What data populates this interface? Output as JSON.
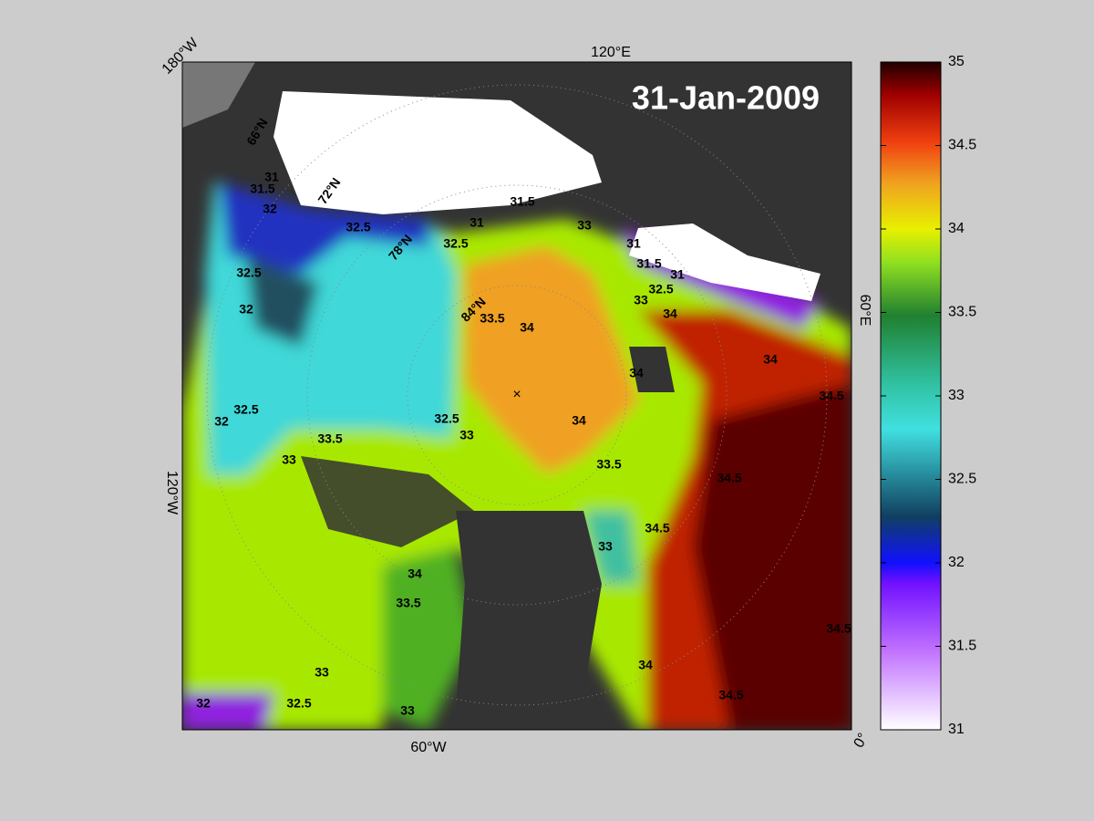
{
  "title": "31-Jan-2009",
  "map": {
    "longitude_labels": [
      "180°W",
      "120°E",
      "60°E",
      "0°",
      "60°W",
      "120°W"
    ],
    "latitude_labels": [
      "66°N",
      "72°N",
      "78°N",
      "84°N"
    ],
    "contour_labels": [
      "31",
      "31.5",
      "32",
      "32.5",
      "32.5",
      "31",
      "31.5",
      "33",
      "31",
      "31.5",
      "31",
      "32.5",
      "33",
      "34",
      "33.5",
      "34",
      "34",
      "34",
      "34.5",
      "32.5",
      "32",
      "32.5",
      "32",
      "32.5",
      "33",
      "34",
      "33.5",
      "33",
      "33.5",
      "34.5",
      "34.5",
      "33",
      "34",
      "33.5",
      "34",
      "34.5",
      "34.5",
      "33",
      "32.5",
      "32",
      "33"
    ]
  },
  "colorbar": {
    "lim": [
      31,
      35
    ],
    "ticks": [
      31,
      31.5,
      32,
      32.5,
      33,
      33.5,
      34,
      34.5,
      35
    ]
  }
}
